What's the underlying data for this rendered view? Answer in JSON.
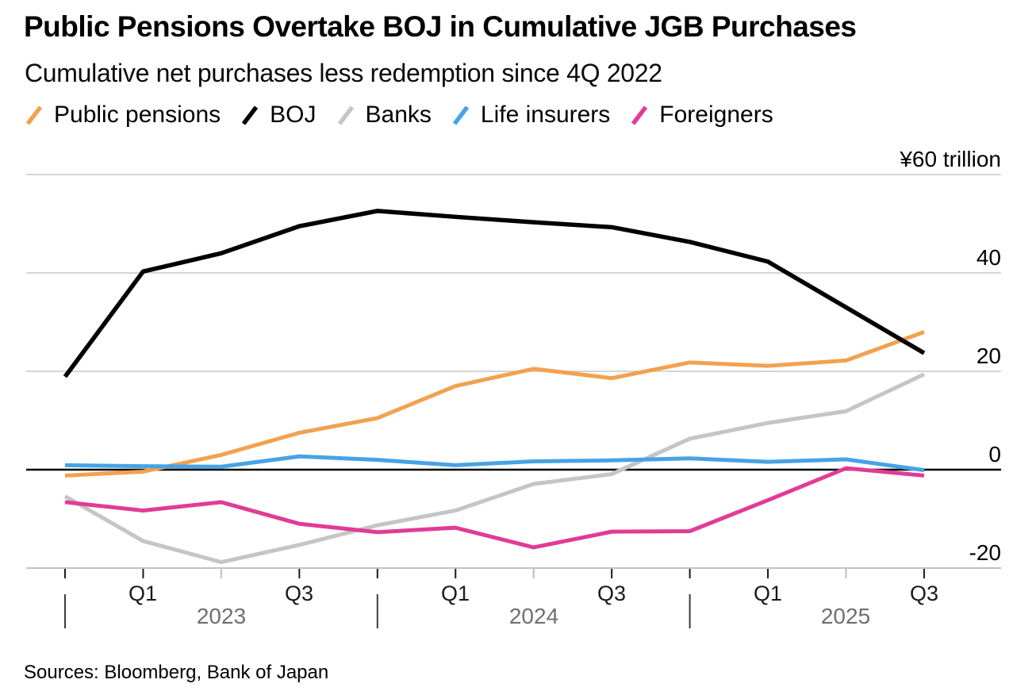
{
  "header": {
    "title": "Public Pensions Overtake BOJ in Cumulative JGB Purchases",
    "subtitle": "Cumulative net purchases less redemption since 4Q 2022"
  },
  "legend": [
    {
      "label": "Public pensions",
      "color_key": "orange"
    },
    {
      "label": "BOJ",
      "color_key": "black"
    },
    {
      "label": "Banks",
      "color_key": "gray"
    },
    {
      "label": "Life insurers",
      "color_key": "blue"
    },
    {
      "label": "Foreigners",
      "color_key": "pink"
    }
  ],
  "colors": {
    "orange": "#F3A14F",
    "black": "#000000",
    "gray": "#C5C5C5",
    "blue": "#47A3E6",
    "pink": "#E23B96",
    "gridline": "#D5D5D5",
    "zero_line": "#000000",
    "axis_line": "#C2C2C2",
    "tick": "#1A1A1A",
    "minor_tick": "#BDBDBD",
    "year_divider": "#3C3C3C",
    "year_label": "#6F6F6F"
  },
  "y_axis": {
    "tick_labels": [
      "¥60 trillion",
      "40",
      "20",
      "0",
      "-20"
    ]
  },
  "x_axis": {
    "quarter_labels": [
      "Q1",
      "Q3",
      "Q1",
      "Q3",
      "Q1",
      "Q3"
    ],
    "years": [
      {
        "label": "2023"
      },
      {
        "label": "2024"
      },
      {
        "label": "2025"
      }
    ]
  },
  "footer": {
    "source": "Sources: Bloomberg, Bank of Japan"
  },
  "chart_data": {
    "type": "line",
    "title": "Public Pensions Overtake BOJ in Cumulative JGB Purchases",
    "subtitle": "Cumulative net purchases less redemption since 4Q 2022",
    "unit": "trillion yen",
    "x_categories": [
      "Q4 2022",
      "Q1 2023",
      "Q2 2023",
      "Q3 2023",
      "Q4 2023",
      "Q1 2024",
      "Q2 2024",
      "Q3 2024",
      "Q4 2024",
      "Q1 2025",
      "Q2 2025",
      "Q3 2025"
    ],
    "series": [
      {
        "name": "Public pensions",
        "color_key": "orange",
        "values": [
          -1.2,
          -0.4,
          3.0,
          7.5,
          10.5,
          17.0,
          20.5,
          18.6,
          21.8,
          21.1,
          22.2,
          28.0
        ]
      },
      {
        "name": "BOJ",
        "color_key": "black",
        "values": [
          18.9,
          40.3,
          44.0,
          49.5,
          52.6,
          51.4,
          50.3,
          49.3,
          46.3,
          42.3,
          33.0,
          23.7
        ]
      },
      {
        "name": "Banks",
        "color_key": "gray",
        "values": [
          -5.4,
          -14.5,
          -18.8,
          -15.3,
          -11.3,
          -8.3,
          -2.9,
          -0.9,
          6.3,
          9.5,
          11.9,
          19.4
        ]
      },
      {
        "name": "Life insurers",
        "color_key": "blue",
        "values": [
          0.9,
          0.7,
          0.6,
          2.7,
          2.0,
          0.9,
          1.7,
          1.9,
          2.3,
          1.6,
          2.1,
          -0.1
        ]
      },
      {
        "name": "Foreigners",
        "color_key": "pink",
        "values": [
          -6.6,
          -8.3,
          -6.6,
          -11.0,
          -12.7,
          -11.8,
          -15.8,
          -12.6,
          -12.5,
          -6.2,
          0.3,
          -1.2
        ]
      }
    ],
    "gridline_values": [
      60,
      40,
      20,
      0,
      -20
    ],
    "ylim": [
      -24,
      62
    ],
    "grid": "horizontal",
    "legend_position": "top",
    "x_note": "quarterly data; Q2 ticks minor; year dividers at Q4 ticks"
  }
}
